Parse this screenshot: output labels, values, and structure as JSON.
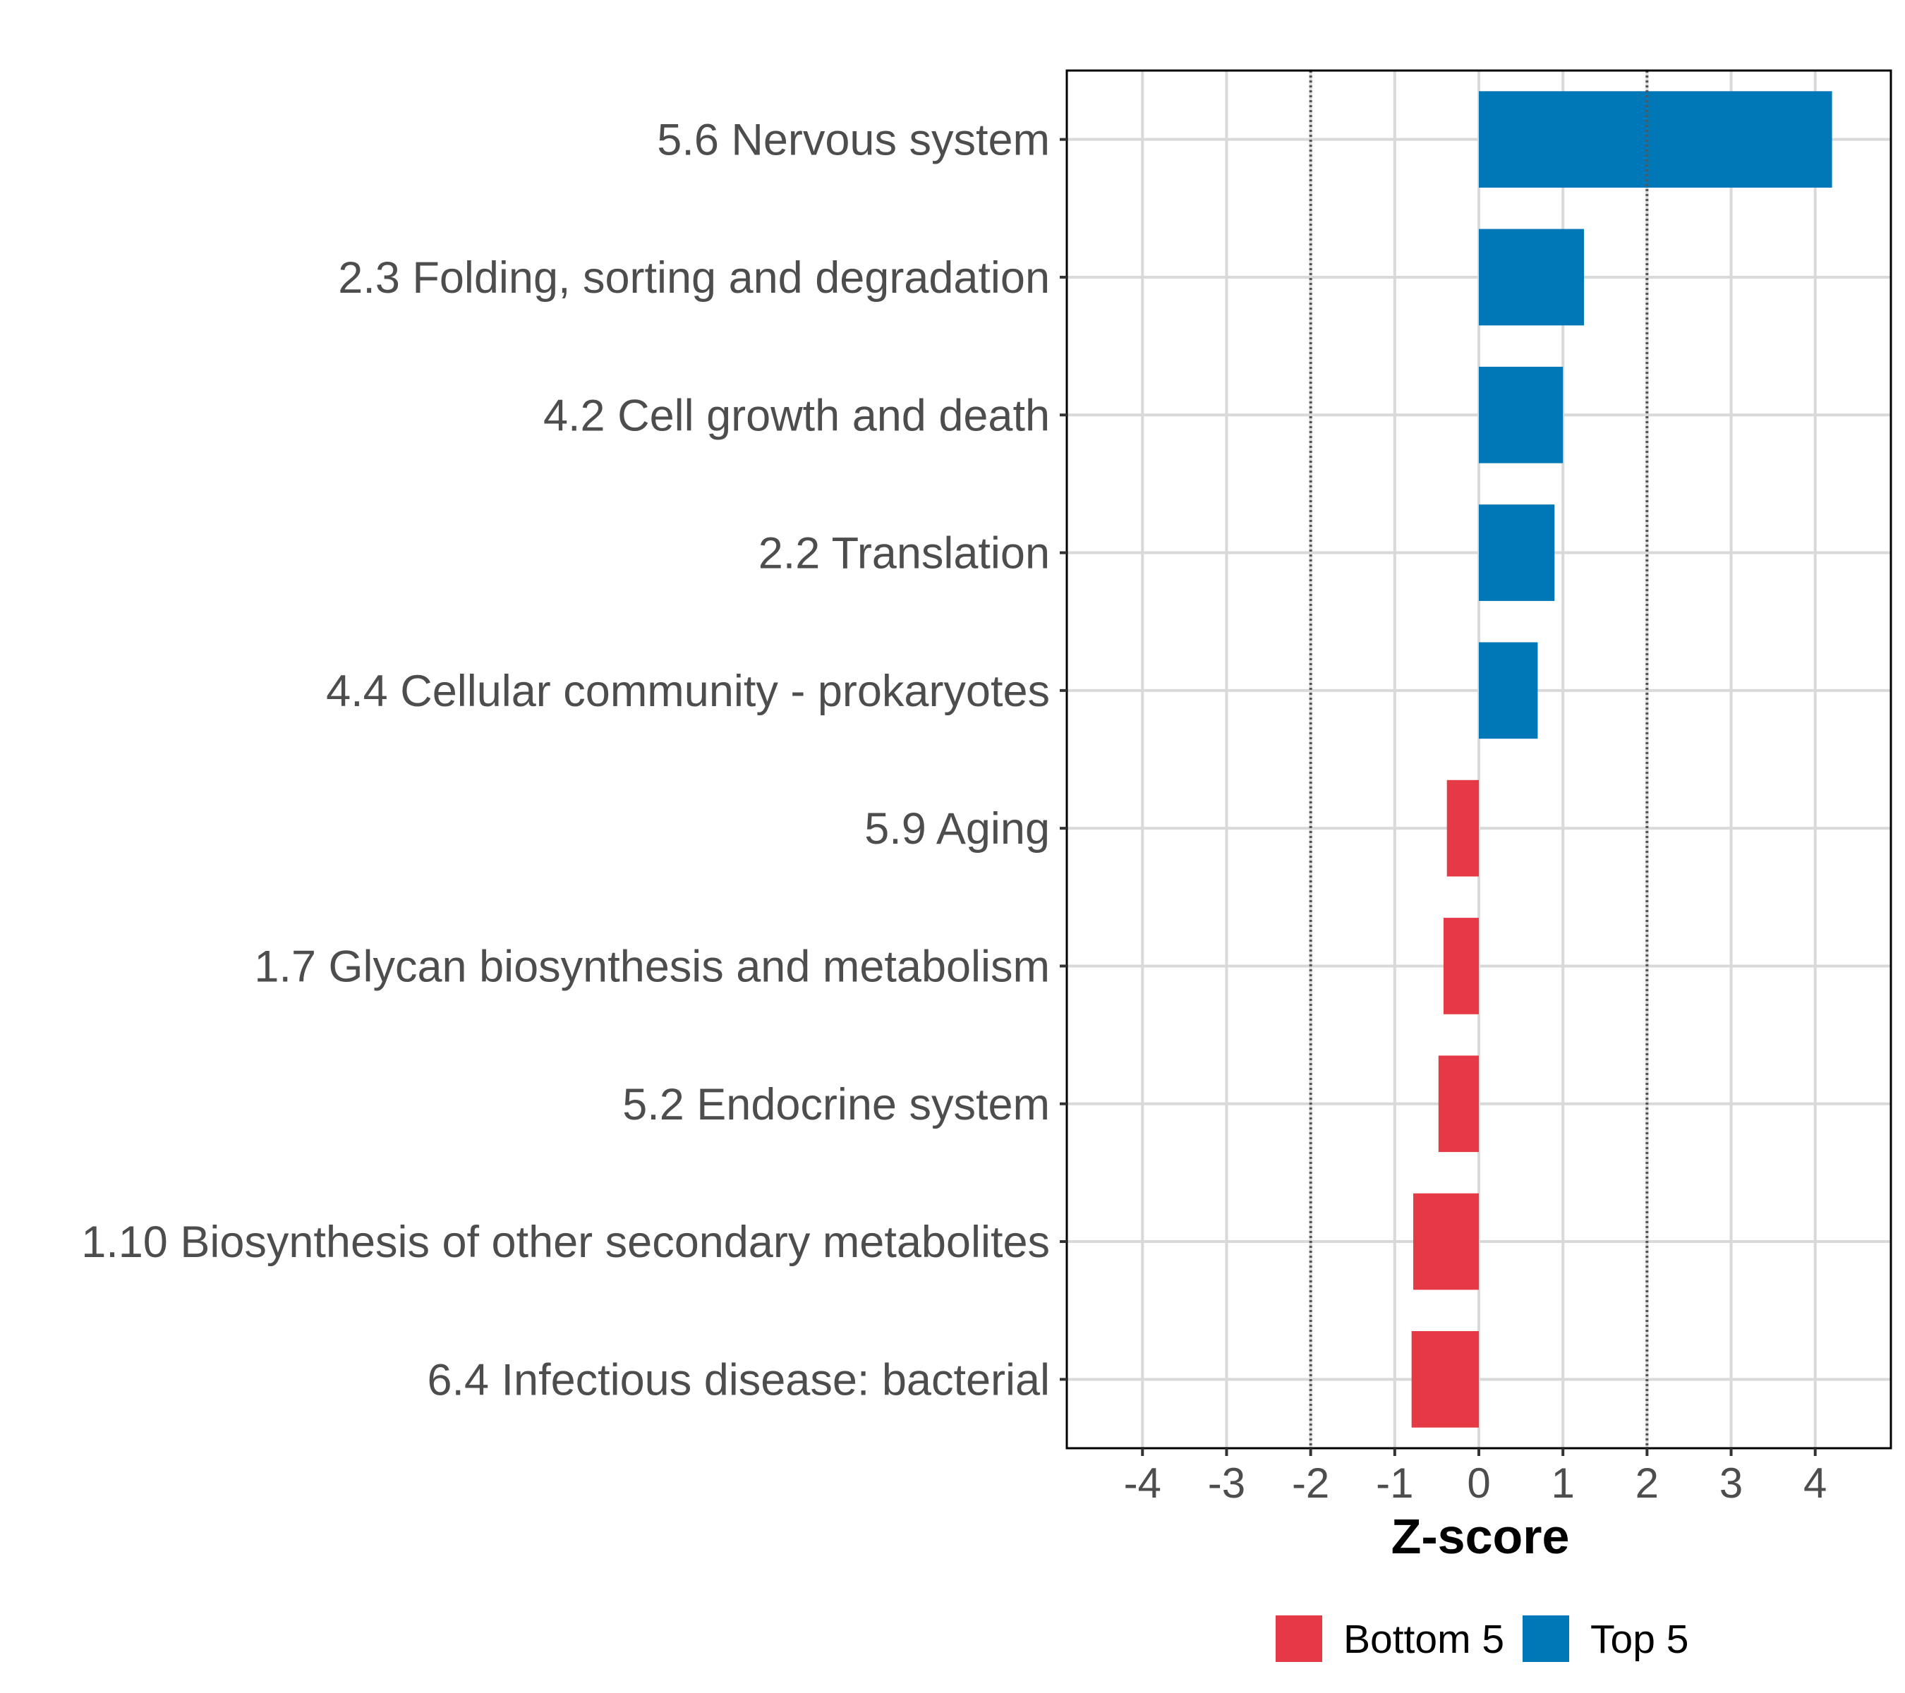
{
  "chart_data": {
    "type": "bar",
    "orientation": "horizontal",
    "title": "",
    "xlabel": "Z-score",
    "ylabel": "",
    "xlim": [
      -4.9,
      4.9
    ],
    "xticks": [
      -4,
      -3,
      -2,
      -1,
      0,
      1,
      2,
      3,
      4
    ],
    "xtick_labels": [
      "-4",
      "-3",
      "-2",
      "-1",
      "0",
      "1",
      "2",
      "3",
      "4"
    ],
    "reference_lines": [
      -2,
      2
    ],
    "grid": true,
    "categories": [
      "5.6 Nervous system",
      "2.3 Folding, sorting and degradation",
      "4.2 Cell growth and death",
      "2.2 Translation",
      "4.4 Cellular community - prokaryotes",
      "5.9 Aging",
      "1.7 Glycan biosynthesis and metabolism",
      "5.2 Endocrine system",
      "1.10 Biosynthesis of other secondary metabolites",
      "6.4 Infectious disease: bacterial"
    ],
    "values": [
      4.2,
      1.25,
      1.0,
      0.9,
      0.7,
      -0.38,
      -0.42,
      -0.48,
      -0.78,
      -0.8
    ],
    "groups": [
      "Top 5",
      "Top 5",
      "Top 5",
      "Top 5",
      "Top 5",
      "Bottom 5",
      "Bottom 5",
      "Bottom 5",
      "Bottom 5",
      "Bottom 5"
    ],
    "legend": [
      {
        "label": "Bottom 5",
        "color": "#e63946"
      },
      {
        "label": "Top 5",
        "color": "#0077b6"
      }
    ],
    "legend_position": "bottom"
  },
  "colors": {
    "top": "#0077b6",
    "bottom": "#e63946",
    "grid": "#d9d9d9",
    "reference": "#555555",
    "frame": "#000000",
    "text": "#4d4d4d"
  }
}
